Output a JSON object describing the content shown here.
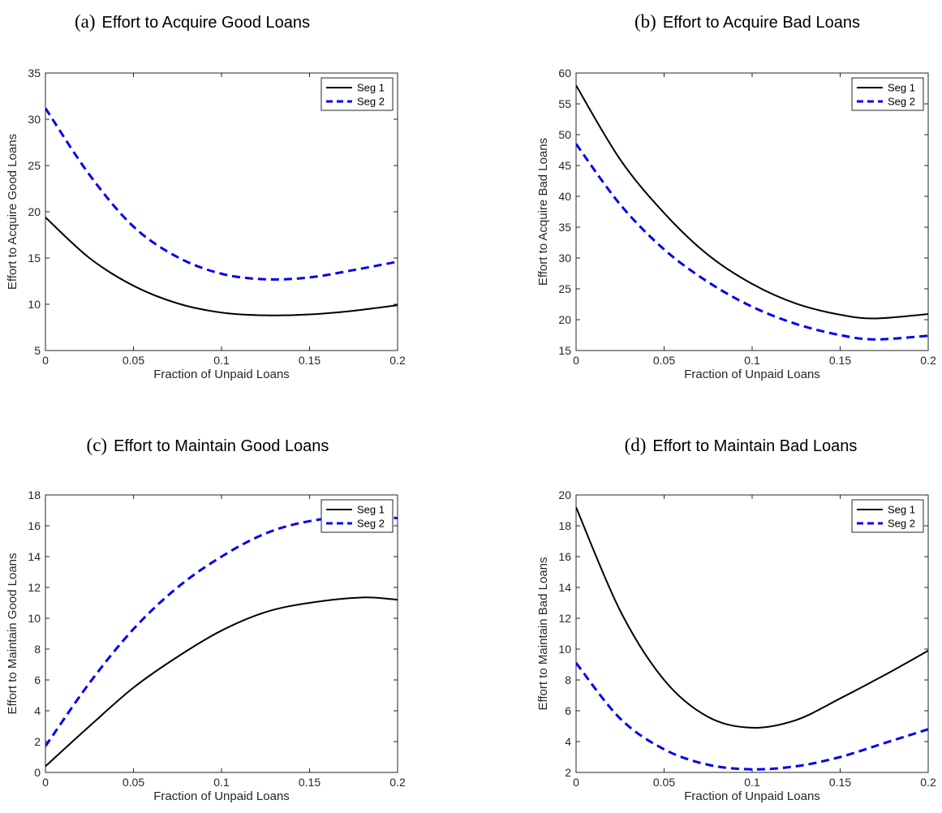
{
  "chart_data": [
    {
      "panel": "(a)",
      "title": "Effort to Acquire Good Loans",
      "type": "line",
      "xlabel": "Fraction of Unpaid Loans",
      "ylabel": "Effort to Acquire Good Loans",
      "xlim": [
        0,
        0.2
      ],
      "ylim": [
        5,
        35
      ],
      "xticks": [
        0,
        0.05,
        0.1,
        0.15,
        0.2
      ],
      "xtick_labels": [
        "0",
        "0.05",
        "0.1",
        "0.15",
        "0.2"
      ],
      "yticks": [
        5,
        10,
        15,
        20,
        25,
        30,
        35
      ],
      "ytick_labels": [
        "5",
        "10",
        "15",
        "20",
        "25",
        "30",
        "35"
      ],
      "grid": false,
      "legend_position": "top-right",
      "x": [
        0,
        0.025,
        0.05,
        0.075,
        0.1,
        0.125,
        0.15,
        0.175,
        0.2
      ],
      "series": [
        {
          "name": "Seg 1",
          "color": "#000000",
          "style": "solid",
          "values": [
            19.4,
            15.0,
            12.0,
            10.1,
            9.1,
            8.8,
            8.9,
            9.3,
            9.9
          ]
        },
        {
          "name": "Seg 2",
          "color": "#0000ee",
          "style": "dashed",
          "values": [
            31.2,
            24.0,
            18.4,
            15.1,
            13.3,
            12.7,
            12.9,
            13.7,
            14.6
          ]
        }
      ]
    },
    {
      "panel": "(b)",
      "title": "Effort to Acquire Bad Loans",
      "type": "line",
      "xlabel": "Fraction of Unpaid Loans",
      "ylabel": "Effort to Acquire Bad Loans",
      "xlim": [
        0,
        0.2
      ],
      "ylim": [
        15,
        60
      ],
      "xticks": [
        0,
        0.05,
        0.1,
        0.15,
        0.2
      ],
      "xtick_labels": [
        "0",
        "0.05",
        "0.1",
        "0.15",
        "0.2"
      ],
      "yticks": [
        15,
        20,
        25,
        30,
        35,
        40,
        45,
        50,
        55,
        60
      ],
      "ytick_labels": [
        "15",
        "20",
        "25",
        "30",
        "35",
        "40",
        "45",
        "50",
        "55",
        "60"
      ],
      "grid": false,
      "legend_position": "top-right",
      "x": [
        0,
        0.025,
        0.05,
        0.075,
        0.1,
        0.125,
        0.15,
        0.17,
        0.2
      ],
      "series": [
        {
          "name": "Seg 1",
          "color": "#000000",
          "style": "solid",
          "values": [
            58.0,
            46.0,
            37.3,
            30.5,
            25.8,
            22.6,
            20.8,
            20.2,
            20.9
          ]
        },
        {
          "name": "Seg 2",
          "color": "#0000ee",
          "style": "dashed",
          "values": [
            48.5,
            38.7,
            31.4,
            26.1,
            22.1,
            19.3,
            17.5,
            16.8,
            17.4
          ]
        }
      ]
    },
    {
      "panel": "(c)",
      "title": "Effort to Maintain Good Loans",
      "type": "line",
      "xlabel": "Fraction of Unpaid Loans",
      "ylabel": "Effort to Maintain Good Loans",
      "xlim": [
        0,
        0.2
      ],
      "ylim": [
        0,
        18
      ],
      "xticks": [
        0,
        0.05,
        0.1,
        0.15,
        0.2
      ],
      "xtick_labels": [
        "0",
        "0.05",
        "0.1",
        "0.15",
        "0.2"
      ],
      "yticks": [
        0,
        2,
        4,
        6,
        8,
        10,
        12,
        14,
        16,
        18
      ],
      "ytick_labels": [
        "0",
        "2",
        "4",
        "6",
        "8",
        "10",
        "12",
        "14",
        "16",
        "18"
      ],
      "grid": false,
      "legend_position": "top-right",
      "x": [
        0,
        0.025,
        0.05,
        0.075,
        0.1,
        0.125,
        0.15,
        0.18,
        0.2
      ],
      "series": [
        {
          "name": "Seg 1",
          "color": "#000000",
          "style": "solid",
          "values": [
            0.4,
            3.0,
            5.5,
            7.5,
            9.2,
            10.4,
            11.0,
            11.35,
            11.2
          ]
        },
        {
          "name": "Seg 2",
          "color": "#0000ee",
          "style": "dashed",
          "values": [
            1.7,
            5.8,
            9.3,
            12.0,
            14.0,
            15.5,
            16.3,
            16.65,
            16.5
          ]
        }
      ]
    },
    {
      "panel": "(d)",
      "title": "Effort to Maintain Bad Loans",
      "type": "line",
      "xlabel": "Fraction of Unpaid Loans",
      "ylabel": "Effort to Maintain Bad Loans",
      "xlim": [
        0,
        0.2
      ],
      "ylim": [
        2,
        20
      ],
      "xticks": [
        0,
        0.05,
        0.1,
        0.15,
        0.2
      ],
      "xtick_labels": [
        "0",
        "0.05",
        "0.1",
        "0.15",
        "0.2"
      ],
      "yticks": [
        2,
        4,
        6,
        8,
        10,
        12,
        14,
        16,
        18,
        20
      ],
      "ytick_labels": [
        "2",
        "4",
        "6",
        "8",
        "10",
        "12",
        "14",
        "16",
        "18",
        "20"
      ],
      "grid": false,
      "legend_position": "top-right",
      "x": [
        0,
        0.025,
        0.05,
        0.075,
        0.1,
        0.125,
        0.15,
        0.175,
        0.2
      ],
      "series": [
        {
          "name": "Seg 1",
          "color": "#000000",
          "style": "solid",
          "values": [
            19.2,
            12.5,
            8.0,
            5.6,
            4.9,
            5.4,
            6.8,
            8.3,
            9.9
          ]
        },
        {
          "name": "Seg 2",
          "color": "#0000ee",
          "style": "dashed",
          "values": [
            9.1,
            5.5,
            3.5,
            2.5,
            2.2,
            2.4,
            3.0,
            3.9,
            4.8
          ]
        }
      ]
    }
  ]
}
